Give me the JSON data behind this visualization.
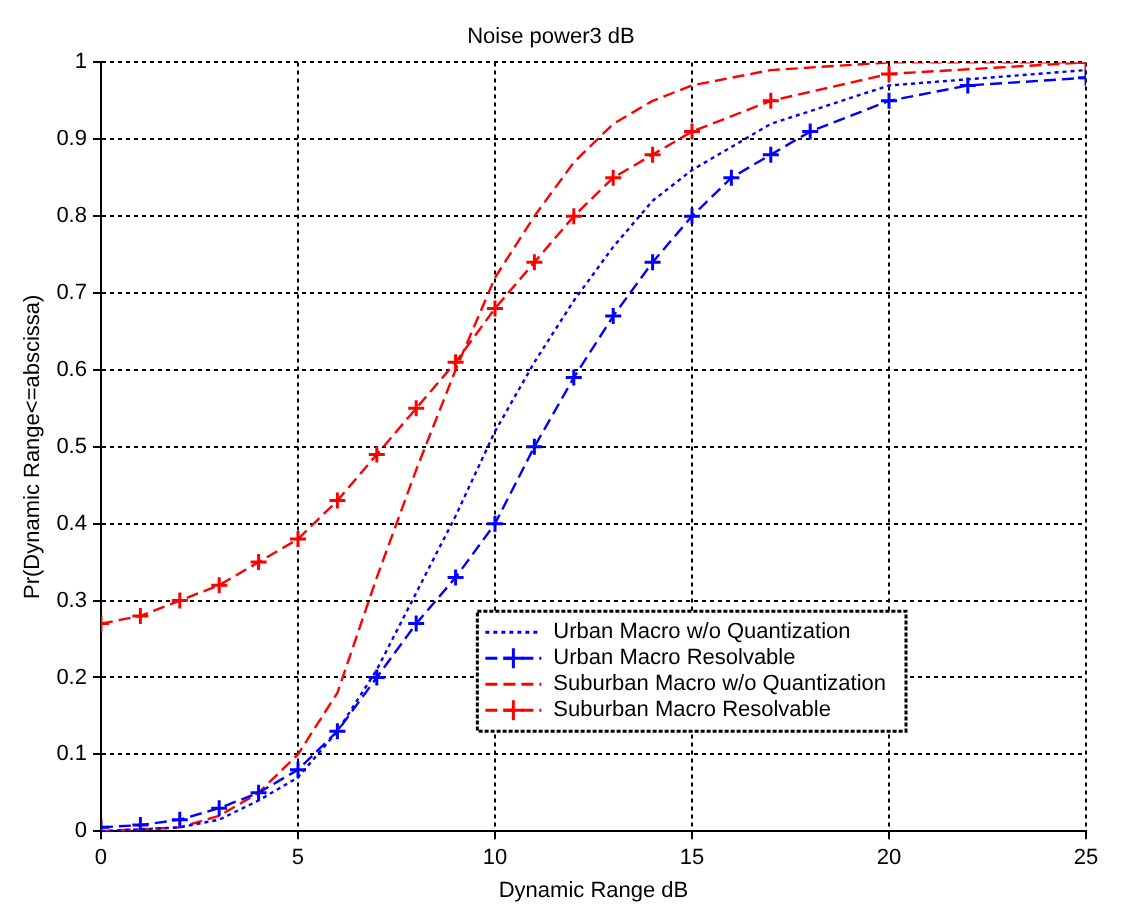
{
  "chart_data": {
    "type": "line",
    "title": "Noise power3 dB",
    "xlabel": "Dynamic Range dB",
    "ylabel": "Pr(Dynamic Range<=abscissa)",
    "xlim": [
      0,
      25
    ],
    "xticks": [
      0,
      5,
      10,
      15,
      20,
      25
    ],
    "ylim": [
      0,
      1
    ],
    "yticks": [
      0,
      0.1,
      0.2,
      0.3,
      0.4,
      0.5,
      0.6,
      0.7,
      0.8,
      0.9,
      1
    ],
    "grid": true,
    "legend": "bottom right",
    "series": [
      {
        "name": "Urban Macro w/o Quantization",
        "color": "#0000ff",
        "line_style": "dotted",
        "marker": "none",
        "x": [
          0,
          2,
          3,
          4,
          5,
          6,
          7,
          8,
          9,
          10,
          11,
          12,
          13,
          14,
          15,
          17,
          20,
          25
        ],
        "values": [
          0,
          0.005,
          0.015,
          0.04,
          0.07,
          0.13,
          0.21,
          0.31,
          0.41,
          0.52,
          0.61,
          0.69,
          0.76,
          0.82,
          0.86,
          0.92,
          0.97,
          0.99
        ]
      },
      {
        "name": "Urban Macro Resolvable",
        "color": "#0000ff",
        "line_style": "dashed",
        "marker": "cross",
        "x": [
          0,
          1,
          2,
          3,
          4,
          5,
          6,
          7,
          8,
          9,
          10,
          11,
          12,
          13,
          14,
          15,
          16,
          17,
          18,
          20,
          22,
          25
        ],
        "values": [
          0.005,
          0.008,
          0.015,
          0.03,
          0.05,
          0.08,
          0.13,
          0.2,
          0.27,
          0.33,
          0.4,
          0.5,
          0.59,
          0.67,
          0.74,
          0.8,
          0.85,
          0.88,
          0.91,
          0.95,
          0.97,
          0.98
        ]
      },
      {
        "name": "Suburban Macro w/o Quantization",
        "color": "#ff0000",
        "line_style": "dashed",
        "marker": "none",
        "x": [
          0,
          2,
          3,
          4,
          5,
          6,
          7,
          8,
          9,
          10,
          11,
          12,
          13,
          14,
          15,
          17,
          20,
          25
        ],
        "values": [
          0,
          0.005,
          0.02,
          0.05,
          0.1,
          0.18,
          0.33,
          0.47,
          0.6,
          0.72,
          0.8,
          0.87,
          0.92,
          0.95,
          0.97,
          0.99,
          1,
          1
        ]
      },
      {
        "name": "Suburban Macro Resolvable",
        "color": "#ff0000",
        "line_style": "dashed",
        "marker": "cross",
        "x": [
          0,
          1,
          2,
          3,
          4,
          5,
          6,
          7,
          8,
          9,
          10,
          11,
          12,
          13,
          14,
          15,
          17,
          20,
          25
        ],
        "values": [
          0.27,
          0.28,
          0.3,
          0.32,
          0.35,
          0.38,
          0.43,
          0.49,
          0.55,
          0.61,
          0.68,
          0.74,
          0.8,
          0.85,
          0.88,
          0.91,
          0.95,
          0.985,
          1
        ]
      }
    ]
  }
}
